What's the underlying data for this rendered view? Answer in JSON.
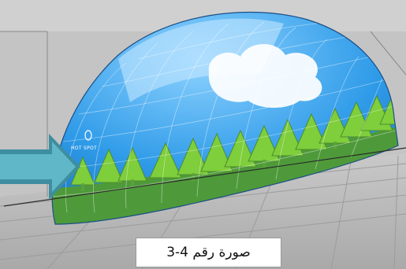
{
  "dome": {
    "hot_spot_label": "HOT SPOT"
  },
  "caption": {
    "text": "صورة رقم 4-3"
  },
  "colors": {
    "background": "#bdbdbd",
    "dome_sky": "#2f9be8",
    "dome_ground": "#4e9a3a",
    "trees": "#7fce3c",
    "arrow": "#4fa8b8"
  },
  "icons": {
    "pointer": "arrow-right-icon"
  }
}
